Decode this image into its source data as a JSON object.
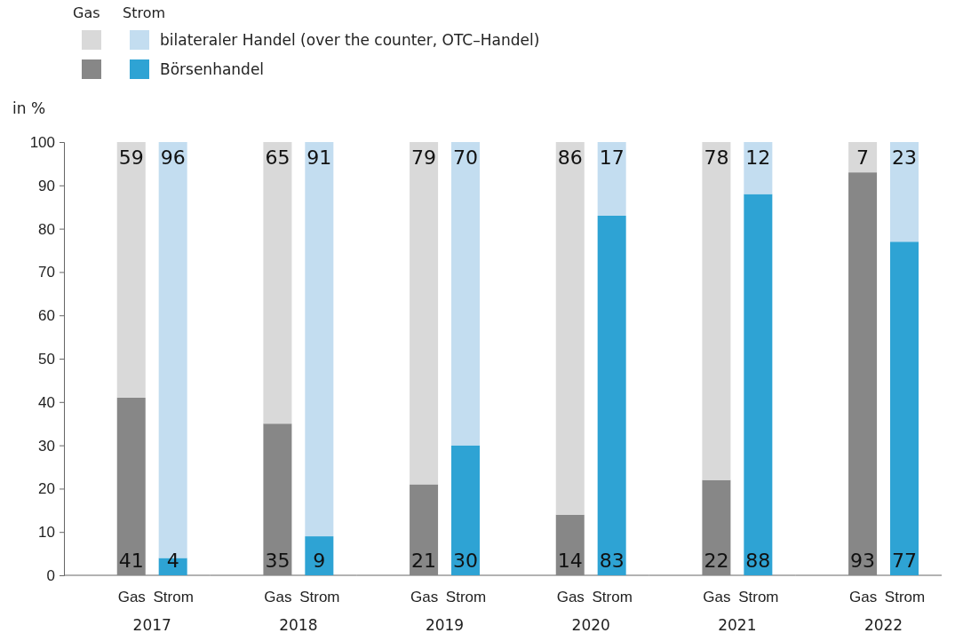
{
  "chart_data": [
    {
      "type": "bar",
      "stacked": true,
      "ylabel": "in %",
      "xlabel": "2017",
      "legend_title": "Gas Strom",
      "legend": "top right",
      "data_labels": true,
      "categories": [
        "Gas",
        "Strom"
      ],
      "ylim": [
        0,
        100
      ],
      "yticks": [
        0,
        10,
        20,
        30,
        40,
        50,
        60,
        70,
        80,
        90,
        100
      ],
      "series": [
        {
          "name": "Börsenhandel",
          "colors": [
            "#878787",
            "#2ea3d4"
          ],
          "values": [
            41,
            4
          ]
        },
        {
          "name": "bilateraler Handel (over the counter, OTC–Handel)",
          "colors": [
            "#d9d9d9",
            "#c3ddf0"
          ],
          "values": [
            59,
            96
          ]
        }
      ]
    },
    {
      "type": "bar",
      "stacked": true,
      "xlabel": "2018",
      "data_labels": true,
      "categories": [
        "Gas",
        "Strom"
      ],
      "ylim": [
        0,
        100
      ],
      "tick_labels": "x",
      "series": [
        {
          "colors": [
            "#878787",
            "#2ea3d4"
          ],
          "values": [
            35,
            9
          ]
        },
        {
          "colors": [
            "#d9d9d9",
            "#c3ddf0"
          ],
          "values": [
            65,
            91
          ]
        }
      ]
    },
    {
      "type": "bar",
      "stacked": true,
      "xlabel": "2019",
      "data_labels": true,
      "categories": [
        "Gas",
        "Strom"
      ],
      "ylim": [
        0,
        100
      ],
      "tick_labels": "x",
      "series": [
        {
          "colors": [
            "#878787",
            "#2ea3d4"
          ],
          "values": [
            21,
            30
          ]
        },
        {
          "colors": [
            "#d9d9d9",
            "#c3ddf0"
          ],
          "values": [
            79,
            70
          ]
        }
      ]
    },
    {
      "type": "bar",
      "stacked": true,
      "xlabel": "2020",
      "data_labels": true,
      "categories": [
        "Gas",
        "Strom"
      ],
      "ylim": [
        0,
        100
      ],
      "tick_labels": "x",
      "series": [
        {
          "colors": [
            "#878787",
            "#2ea3d4"
          ],
          "values": [
            14,
            83
          ]
        },
        {
          "colors": [
            "#d9d9d9",
            "#c3ddf0"
          ],
          "values": [
            86,
            17
          ]
        }
      ]
    },
    {
      "type": "bar",
      "stacked": true,
      "xlabel": "2021",
      "data_labels": true,
      "categories": [
        "Gas",
        "Strom"
      ],
      "ylim": [
        0,
        100
      ],
      "tick_labels": "x",
      "series": [
        {
          "colors": [
            "#878787",
            "#2ea3d4"
          ],
          "values": [
            22,
            88
          ]
        },
        {
          "colors": [
            "#d9d9d9",
            "#c3ddf0"
          ],
          "values": [
            78,
            12
          ]
        }
      ]
    },
    {
      "type": "bar",
      "stacked": true,
      "xlabel": "2022",
      "data_labels": true,
      "categories": [
        "Gas",
        "Strom"
      ],
      "ylim": [
        0,
        100
      ],
      "tick_labels": "x",
      "series": [
        {
          "colors": [
            "#878787",
            "#2ea3d4"
          ],
          "values": [
            93,
            77
          ]
        },
        {
          "colors": [
            "#d9d9d9",
            "#c3ddf0"
          ],
          "values": [
            7,
            23
          ]
        }
      ]
    }
  ]
}
